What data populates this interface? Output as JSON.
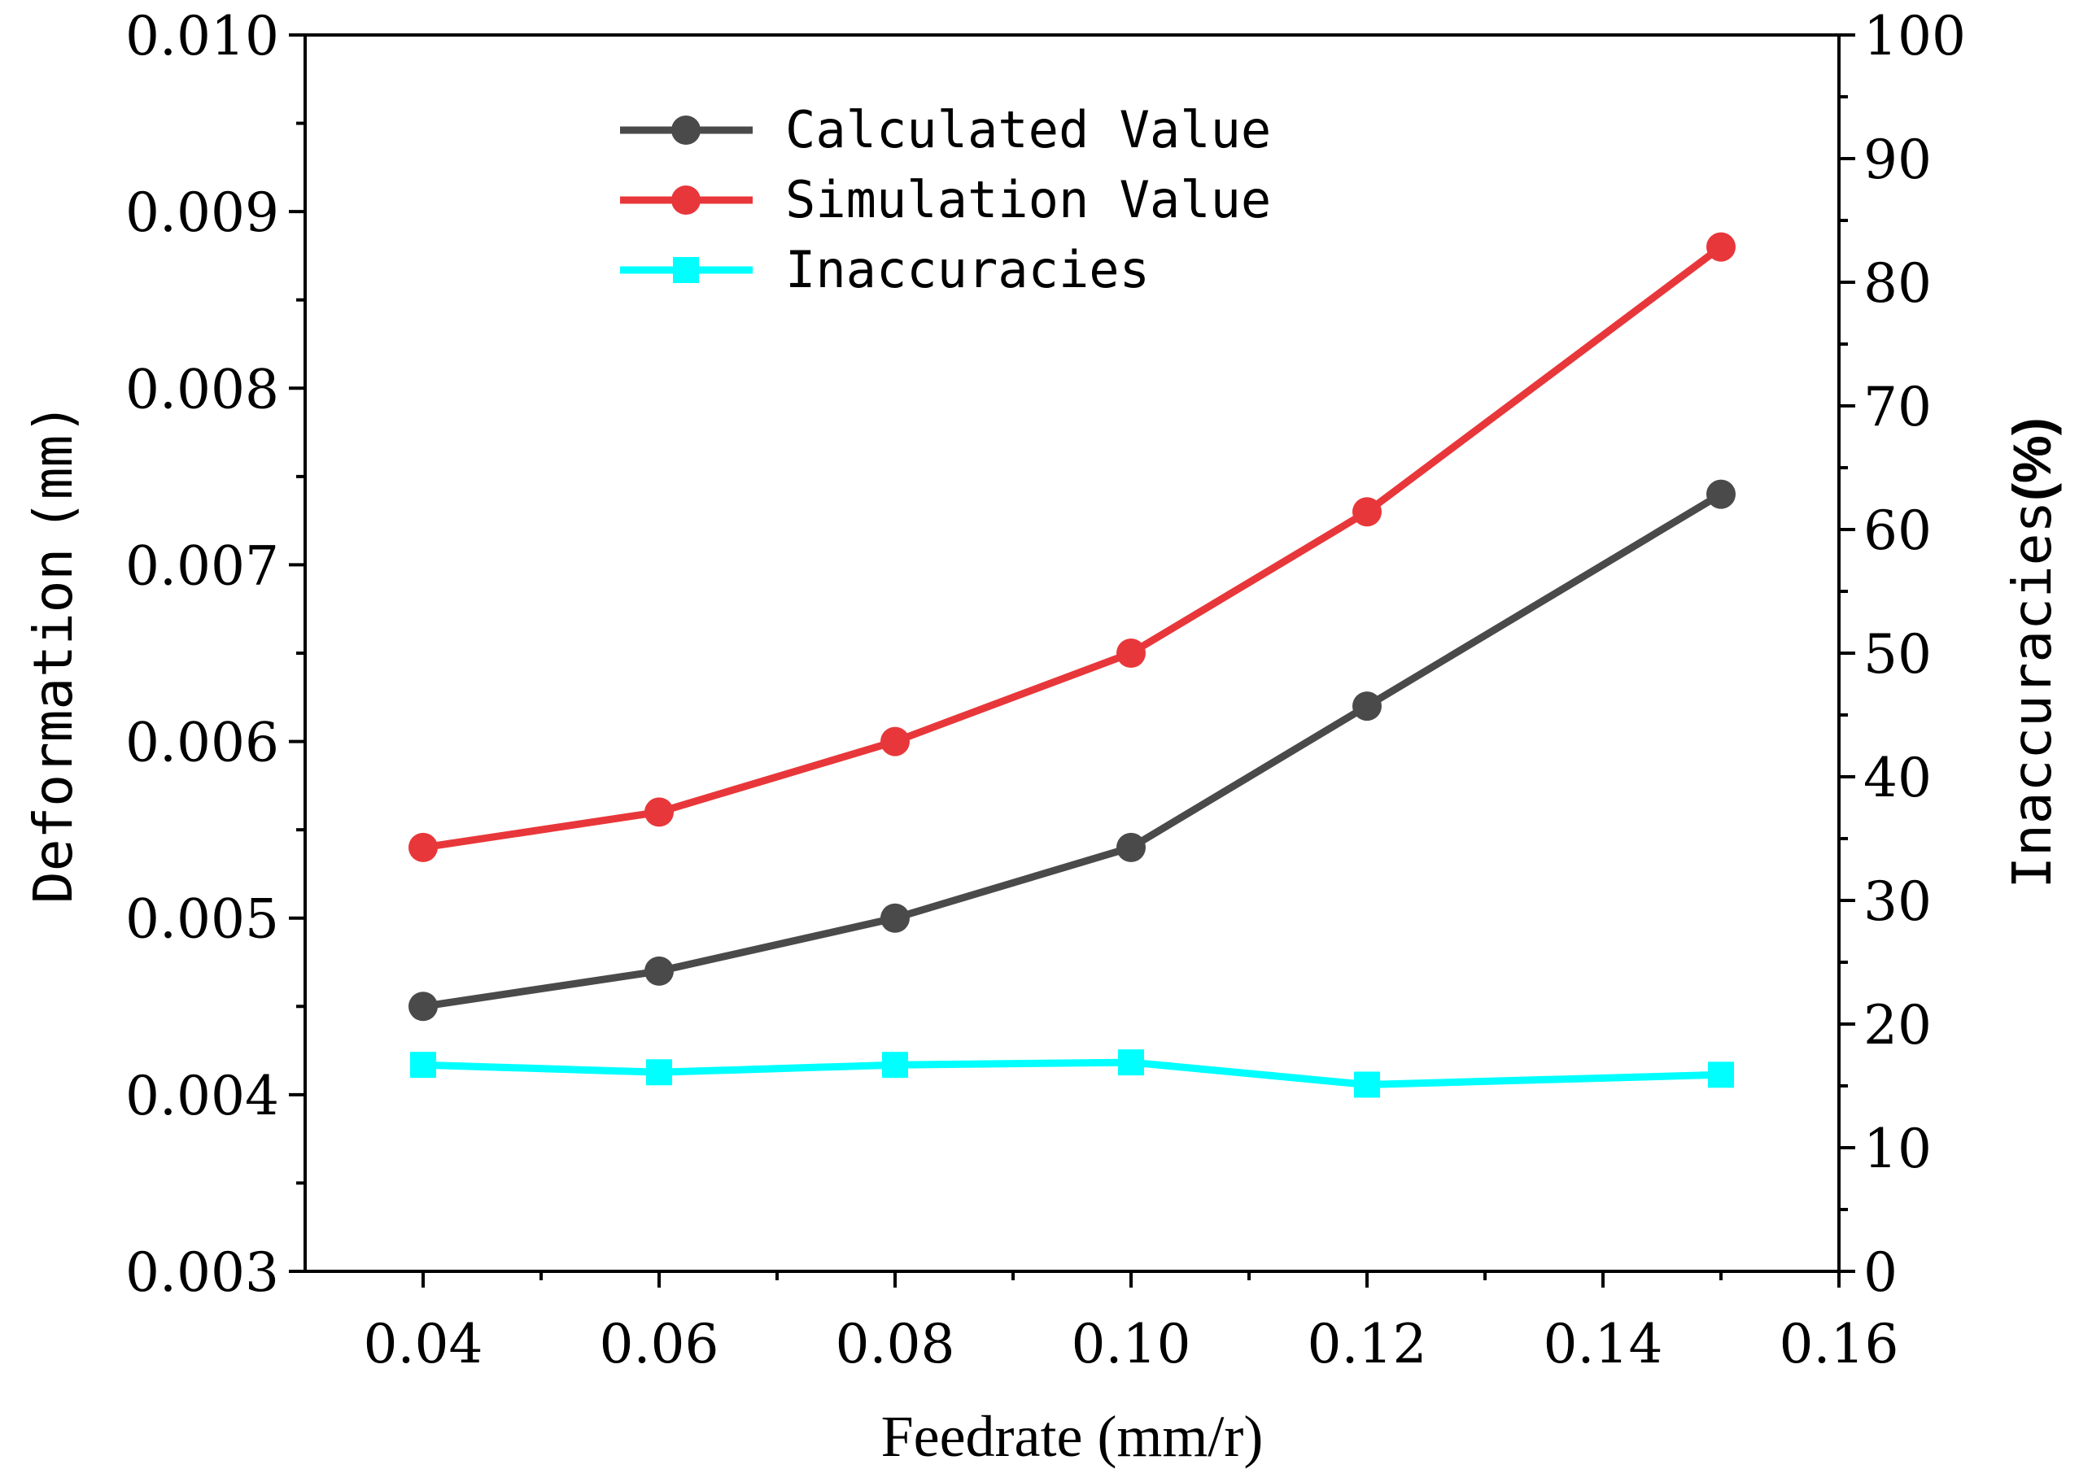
{
  "chart_data": {
    "type": "line",
    "x": [
      0.04,
      0.06,
      0.08,
      0.1,
      0.12,
      0.15
    ],
    "series": [
      {
        "name": "Calculated Value",
        "axis": "left",
        "marker": "circle",
        "color": "#4a4a4a",
        "values": [
          0.0045,
          0.0047,
          0.005,
          0.0054,
          0.0062,
          0.0074
        ]
      },
      {
        "name": "Simulation Value",
        "axis": "left",
        "marker": "circle",
        "color": "#e8373a",
        "values": [
          0.0054,
          0.0056,
          0.006,
          0.0065,
          0.0073,
          0.0088
        ]
      },
      {
        "name": "Inaccuracies",
        "axis": "right",
        "marker": "square",
        "color": "#00ffff",
        "values": [
          16.7,
          16.1,
          16.7,
          16.9,
          15.1,
          15.9
        ]
      }
    ],
    "xlim": [
      0.03,
      0.16
    ],
    "ylim": [
      0.003,
      0.01
    ],
    "y2lim": [
      0,
      100
    ],
    "xticks": [
      0.04,
      0.06,
      0.08,
      0.1,
      0.12,
      0.14,
      0.16
    ],
    "xtick_labels": [
      "0.04",
      "0.06",
      "0.08",
      "0.10",
      "0.12",
      "0.14",
      "0.16"
    ],
    "yticks": [
      0.003,
      0.004,
      0.005,
      0.006,
      0.007,
      0.008,
      0.009,
      0.01
    ],
    "ytick_labels": [
      "0.003",
      "0.004",
      "0.005",
      "0.006",
      "0.007",
      "0.008",
      "0.009",
      "0.010"
    ],
    "y2ticks": [
      0,
      10,
      20,
      30,
      40,
      50,
      60,
      70,
      80,
      90,
      100
    ],
    "y2tick_labels": [
      "0",
      "10",
      "20",
      "30",
      "40",
      "50",
      "60",
      "70",
      "80",
      "90",
      "100"
    ],
    "xlabel": "Feedrate (mm/r)",
    "ylabel_main": "Deformation",
    "ylabel_unit": "(mm)",
    "y2label_main": "Inaccuracies",
    "y2label_unit": "(%)",
    "legend_position": "top-center",
    "grid": false
  }
}
